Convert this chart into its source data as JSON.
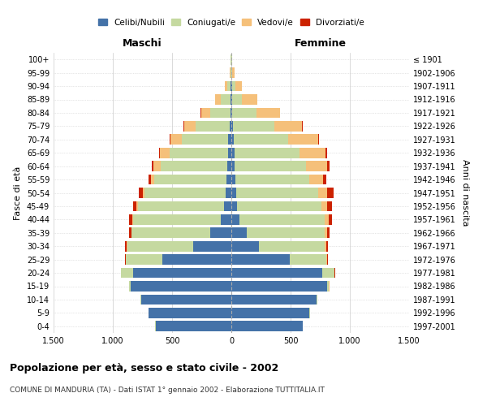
{
  "age_groups": [
    "0-4",
    "5-9",
    "10-14",
    "15-19",
    "20-24",
    "25-29",
    "30-34",
    "35-39",
    "40-44",
    "45-49",
    "50-54",
    "55-59",
    "60-64",
    "65-69",
    "70-74",
    "75-79",
    "80-84",
    "85-89",
    "90-94",
    "95-99",
    "100+"
  ],
  "birth_years": [
    "1997-2001",
    "1992-1996",
    "1987-1991",
    "1982-1986",
    "1977-1981",
    "1972-1976",
    "1967-1971",
    "1962-1966",
    "1957-1961",
    "1952-1956",
    "1947-1951",
    "1942-1946",
    "1937-1941",
    "1932-1936",
    "1927-1931",
    "1922-1926",
    "1917-1921",
    "1912-1916",
    "1907-1911",
    "1902-1906",
    "≤ 1901"
  ],
  "males": {
    "celibe": [
      640,
      700,
      760,
      850,
      830,
      580,
      320,
      180,
      90,
      60,
      45,
      40,
      35,
      30,
      25,
      15,
      10,
      8,
      4,
      2,
      2
    ],
    "coniugato": [
      1,
      2,
      5,
      15,
      100,
      310,
      560,
      660,
      740,
      730,
      690,
      610,
      560,
      490,
      390,
      285,
      165,
      80,
      28,
      8,
      5
    ],
    "vedovo": [
      0,
      0,
      0,
      0,
      1,
      2,
      5,
      3,
      5,
      10,
      15,
      30,
      60,
      80,
      100,
      100,
      80,
      50,
      20,
      5,
      2
    ],
    "divorziato": [
      0,
      0,
      0,
      1,
      2,
      5,
      15,
      20,
      25,
      30,
      30,
      20,
      15,
      10,
      5,
      5,
      3,
      2,
      0,
      0,
      0
    ]
  },
  "females": {
    "nubile": [
      600,
      660,
      720,
      810,
      770,
      490,
      230,
      130,
      70,
      50,
      40,
      35,
      30,
      25,
      20,
      15,
      10,
      8,
      4,
      2,
      2
    ],
    "coniugata": [
      1,
      2,
      5,
      15,
      100,
      310,
      560,
      660,
      720,
      710,
      690,
      620,
      600,
      550,
      460,
      350,
      200,
      80,
      28,
      8,
      3
    ],
    "vedova": [
      0,
      0,
      0,
      1,
      2,
      5,
      8,
      15,
      30,
      50,
      80,
      120,
      180,
      220,
      250,
      230,
      200,
      130,
      60,
      15,
      5
    ],
    "divorziata": [
      0,
      0,
      0,
      1,
      3,
      8,
      20,
      25,
      30,
      40,
      50,
      25,
      20,
      15,
      10,
      5,
      3,
      2,
      0,
      0,
      0
    ]
  },
  "colors": {
    "celibe_nubile": "#4472a8",
    "coniugato_a": "#c5d9a0",
    "vedovo_a": "#f5c07a",
    "divorziato_a": "#cc2200"
  },
  "xlim": 1500,
  "title": "Popolazione per età, sesso e stato civile - 2002",
  "subtitle": "COMUNE DI MANDURIA (TA) - Dati ISTAT 1° gennaio 2002 - Elaborazione TUTTITALIA.IT",
  "xlabel_left": "Maschi",
  "xlabel_right": "Femmine",
  "ylabel_left": "Fasce di età",
  "ylabel_right": "Anni di nascita",
  "bg_color": "#ffffff",
  "grid_color": "#cccccc",
  "xticks": [
    -1500,
    -1000,
    -500,
    0,
    500,
    1000,
    1500
  ],
  "xtick_labels": [
    "1.500",
    "1.000",
    "500",
    "0",
    "500",
    "1.000",
    "1.500"
  ]
}
